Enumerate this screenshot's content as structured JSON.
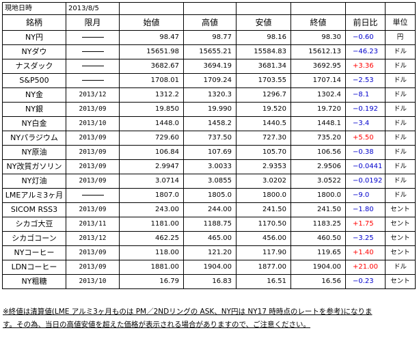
{
  "meta": {
    "label": "現地日時",
    "date": "2013/8/5"
  },
  "headers": [
    "銘柄",
    "限月",
    "始値",
    "高値",
    "安値",
    "終値",
    "前日比",
    "単位"
  ],
  "rows": [
    {
      "name": "NY円",
      "month": "",
      "open": "98.47",
      "high": "98.77",
      "low": "98.16",
      "close": "98.30",
      "change": "−0.60",
      "dir": "down",
      "unit": "円"
    },
    {
      "name": "NYダウ",
      "month": "",
      "open": "15651.98",
      "high": "15655.21",
      "low": "15584.83",
      "close": "15612.13",
      "change": "−46.23",
      "dir": "down",
      "unit": "ドル"
    },
    {
      "name": "ナスダック",
      "month": "",
      "open": "3682.67",
      "high": "3694.19",
      "low": "3681.34",
      "close": "3692.95",
      "change": "+3.36",
      "dir": "up",
      "unit": "ドル"
    },
    {
      "name": "S&P500",
      "month": "",
      "open": "1708.01",
      "high": "1709.24",
      "low": "1703.55",
      "close": "1707.14",
      "change": "−2.53",
      "dir": "down",
      "unit": "ドル"
    },
    {
      "name": "NY金",
      "month": "2013/12",
      "open": "1312.2",
      "high": "1320.3",
      "low": "1296.7",
      "close": "1302.4",
      "change": "−8.1",
      "dir": "down",
      "unit": "ドル"
    },
    {
      "name": "NY銀",
      "month": "2013/09",
      "open": "19.850",
      "high": "19.990",
      "low": "19.520",
      "close": "19.720",
      "change": "−0.192",
      "dir": "down",
      "unit": "ドル"
    },
    {
      "name": "NY白金",
      "month": "2013/10",
      "open": "1448.0",
      "high": "1458.2",
      "low": "1440.5",
      "close": "1448.1",
      "change": "−3.4",
      "dir": "down",
      "unit": "ドル"
    },
    {
      "name": "NYパラジウム",
      "month": "2013/09",
      "open": "729.60",
      "high": "737.50",
      "low": "727.30",
      "close": "735.20",
      "change": "+5.50",
      "dir": "up",
      "unit": "ドル"
    },
    {
      "name": "NY原油",
      "month": "2013/09",
      "open": "106.84",
      "high": "107.69",
      "low": "105.70",
      "close": "106.56",
      "change": "−0.38",
      "dir": "down",
      "unit": "ドル"
    },
    {
      "name": "NY改質ガソリン",
      "month": "2013/09",
      "open": "2.9947",
      "high": "3.0033",
      "low": "2.9353",
      "close": "2.9506",
      "change": "−0.0441",
      "dir": "down",
      "unit": "ドル"
    },
    {
      "name": "NY灯油",
      "month": "2013/09",
      "open": "3.0714",
      "high": "3.0855",
      "low": "3.0202",
      "close": "3.0522",
      "change": "−0.0192",
      "dir": "down",
      "unit": "ドル"
    },
    {
      "name": "LMEアルミ3ヶ月",
      "month": "",
      "open": "1807.0",
      "high": "1805.0",
      "low": "1800.0",
      "close": "1800.0",
      "change": "−9.0",
      "dir": "down",
      "unit": "ドル"
    },
    {
      "name": "SICOM RSS3",
      "month": "2013/09",
      "open": "243.00",
      "high": "244.00",
      "low": "241.50",
      "close": "241.50",
      "change": "−1.80",
      "dir": "down",
      "unit": "セント"
    },
    {
      "name": "シカゴ大豆",
      "month": "2013/11",
      "open": "1181.00",
      "high": "1188.75",
      "low": "1170.50",
      "close": "1183.25",
      "change": "+1.75",
      "dir": "up",
      "unit": "セント"
    },
    {
      "name": "シカゴコーン",
      "month": "2013/12",
      "open": "462.25",
      "high": "465.00",
      "low": "456.00",
      "close": "460.50",
      "change": "−3.25",
      "dir": "down",
      "unit": "セント"
    },
    {
      "name": "NYコーヒー",
      "month": "2013/09",
      "open": "118.00",
      "high": "121.20",
      "low": "117.90",
      "close": "119.65",
      "change": "+1.40",
      "dir": "up",
      "unit": "セント"
    },
    {
      "name": "LDNコーヒー",
      "month": "2013/09",
      "open": "1881.00",
      "high": "1904.00",
      "low": "1877.00",
      "close": "1904.00",
      "change": "+21.00",
      "dir": "up",
      "unit": "ドル"
    },
    {
      "name": "NY粗糖",
      "month": "2013/10",
      "open": "16.79",
      "high": "16.83",
      "low": "16.51",
      "close": "16.56",
      "change": "−0.23",
      "dir": "down",
      "unit": "セント"
    }
  ],
  "note": {
    "line1": "※終値は清算値(LME アルミ3ヶ月ものは PM／2NDリングの ASK、NY円は NY17 時時点のレートを参考)になりま",
    "line2": "す。その為、当日の高値安値を超えた価格が表示される場合がありますので、ご注意ください。"
  },
  "colors": {
    "up": "#ff0000",
    "down": "#0000cc"
  }
}
